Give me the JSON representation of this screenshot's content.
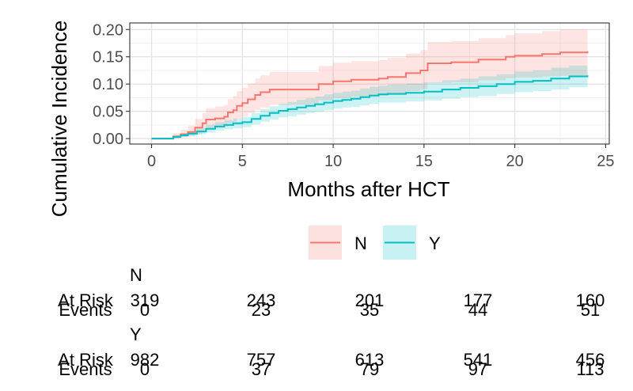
{
  "chart_data": {
    "type": "line",
    "ylabel": "Cumulative Incidence",
    "xlabel": "Months after HCT",
    "xlim": [
      -1.2,
      25.2
    ],
    "ylim": [
      -0.01,
      0.212
    ],
    "x_ticks": [
      0,
      5,
      10,
      15,
      20,
      25
    ],
    "y_ticks": [
      0.0,
      0.05,
      0.1,
      0.15,
      0.2
    ],
    "x_tick_labels": [
      "0",
      "5",
      "10",
      "15",
      "20",
      "25"
    ],
    "y_tick_labels": [
      "0.00",
      "0.05",
      "0.10",
      "0.15",
      "0.20"
    ],
    "grid": true,
    "legend_placement": "bottom",
    "series": [
      {
        "name": "N",
        "color": "#F8766D",
        "points": [
          [
            0,
            0
          ],
          [
            0.8,
            0
          ],
          [
            1.2,
            0.004
          ],
          [
            1.6,
            0.008
          ],
          [
            2.0,
            0.012
          ],
          [
            2.4,
            0.02
          ],
          [
            2.8,
            0.028
          ],
          [
            3.0,
            0.035
          ],
          [
            3.5,
            0.037
          ],
          [
            4.0,
            0.04
          ],
          [
            4.2,
            0.048
          ],
          [
            4.5,
            0.052
          ],
          [
            4.7,
            0.06
          ],
          [
            5.0,
            0.065
          ],
          [
            5.3,
            0.072
          ],
          [
            5.7,
            0.08
          ],
          [
            6.0,
            0.085
          ],
          [
            6.5,
            0.09
          ],
          [
            8.0,
            0.09
          ],
          [
            9.2,
            0.1
          ],
          [
            10.0,
            0.105
          ],
          [
            11.0,
            0.108
          ],
          [
            12.5,
            0.11
          ],
          [
            13.0,
            0.113
          ],
          [
            14.0,
            0.12
          ],
          [
            14.8,
            0.125
          ],
          [
            15.2,
            0.138
          ],
          [
            16.5,
            0.14
          ],
          [
            18.0,
            0.145
          ],
          [
            19.5,
            0.15
          ],
          [
            20.0,
            0.152
          ],
          [
            21.5,
            0.155
          ],
          [
            22.5,
            0.158
          ],
          [
            24,
            0.16
          ]
        ],
        "lower": [
          [
            0,
            0
          ],
          [
            0.8,
            0
          ],
          [
            1.2,
            0.0
          ],
          [
            1.6,
            0.002
          ],
          [
            2.0,
            0.004
          ],
          [
            2.4,
            0.008
          ],
          [
            2.8,
            0.013
          ],
          [
            3.0,
            0.018
          ],
          [
            3.5,
            0.02
          ],
          [
            4.0,
            0.022
          ],
          [
            4.2,
            0.028
          ],
          [
            4.5,
            0.031
          ],
          [
            4.7,
            0.037
          ],
          [
            5.0,
            0.041
          ],
          [
            5.3,
            0.047
          ],
          [
            5.7,
            0.053
          ],
          [
            6.0,
            0.057
          ],
          [
            6.5,
            0.062
          ],
          [
            8.0,
            0.062
          ],
          [
            9.2,
            0.07
          ],
          [
            10.0,
            0.074
          ],
          [
            11.0,
            0.077
          ],
          [
            12.5,
            0.079
          ],
          [
            13.0,
            0.081
          ],
          [
            14.0,
            0.087
          ],
          [
            14.8,
            0.091
          ],
          [
            15.2,
            0.102
          ],
          [
            16.5,
            0.103
          ],
          [
            18.0,
            0.107
          ],
          [
            19.5,
            0.111
          ],
          [
            20.0,
            0.112
          ],
          [
            21.5,
            0.114
          ],
          [
            22.5,
            0.115
          ],
          [
            24,
            0.116
          ]
        ],
        "upper": [
          [
            0,
            0
          ],
          [
            0.8,
            0.002
          ],
          [
            1.2,
            0.01
          ],
          [
            1.6,
            0.016
          ],
          [
            2.0,
            0.024
          ],
          [
            2.4,
            0.036
          ],
          [
            2.8,
            0.047
          ],
          [
            3.0,
            0.056
          ],
          [
            3.5,
            0.059
          ],
          [
            4.0,
            0.062
          ],
          [
            4.2,
            0.072
          ],
          [
            4.5,
            0.078
          ],
          [
            4.7,
            0.087
          ],
          [
            5.0,
            0.093
          ],
          [
            5.3,
            0.101
          ],
          [
            5.7,
            0.11
          ],
          [
            6.0,
            0.116
          ],
          [
            6.5,
            0.122
          ],
          [
            8.0,
            0.122
          ],
          [
            9.2,
            0.133
          ],
          [
            10.0,
            0.139
          ],
          [
            11.0,
            0.142
          ],
          [
            12.5,
            0.144
          ],
          [
            13.0,
            0.148
          ],
          [
            14.0,
            0.156
          ],
          [
            14.8,
            0.162
          ],
          [
            15.2,
            0.177
          ],
          [
            16.5,
            0.179
          ],
          [
            18.0,
            0.184
          ],
          [
            19.5,
            0.19
          ],
          [
            20.0,
            0.193
          ],
          [
            21.5,
            0.197
          ],
          [
            22.5,
            0.2
          ],
          [
            24,
            0.203
          ]
        ]
      },
      {
        "name": "Y",
        "color": "#00BFC4",
        "points": [
          [
            0,
            0
          ],
          [
            0.8,
            0
          ],
          [
            1.2,
            0.003
          ],
          [
            1.6,
            0.006
          ],
          [
            2.0,
            0.009
          ],
          [
            2.5,
            0.013
          ],
          [
            3.0,
            0.018
          ],
          [
            3.5,
            0.022
          ],
          [
            4.0,
            0.025
          ],
          [
            4.5,
            0.028
          ],
          [
            5.0,
            0.03
          ],
          [
            5.5,
            0.036
          ],
          [
            6.0,
            0.042
          ],
          [
            6.5,
            0.047
          ],
          [
            7.0,
            0.051
          ],
          [
            7.5,
            0.054
          ],
          [
            8.0,
            0.057
          ],
          [
            8.5,
            0.06
          ],
          [
            9.0,
            0.063
          ],
          [
            9.5,
            0.066
          ],
          [
            10.0,
            0.069
          ],
          [
            10.5,
            0.071
          ],
          [
            11.0,
            0.073
          ],
          [
            11.5,
            0.076
          ],
          [
            12.0,
            0.079
          ],
          [
            12.5,
            0.081
          ],
          [
            13.0,
            0.082
          ],
          [
            14.0,
            0.084
          ],
          [
            15.0,
            0.086
          ],
          [
            16.0,
            0.09
          ],
          [
            17.0,
            0.093
          ],
          [
            18.0,
            0.096
          ],
          [
            19.0,
            0.1
          ],
          [
            20.0,
            0.104
          ],
          [
            21.0,
            0.106
          ],
          [
            22.0,
            0.11
          ],
          [
            23.0,
            0.114
          ],
          [
            24,
            0.116
          ]
        ],
        "lower": [
          [
            0,
            0
          ],
          [
            0.8,
            0
          ],
          [
            1.2,
            0.001
          ],
          [
            1.6,
            0.003
          ],
          [
            2.0,
            0.005
          ],
          [
            2.5,
            0.008
          ],
          [
            3.0,
            0.011
          ],
          [
            3.5,
            0.015
          ],
          [
            4.0,
            0.017
          ],
          [
            4.5,
            0.019
          ],
          [
            5.0,
            0.021
          ],
          [
            5.5,
            0.026
          ],
          [
            6.0,
            0.031
          ],
          [
            6.5,
            0.035
          ],
          [
            7.0,
            0.039
          ],
          [
            7.5,
            0.041
          ],
          [
            8.0,
            0.044
          ],
          [
            8.5,
            0.047
          ],
          [
            9.0,
            0.049
          ],
          [
            9.5,
            0.052
          ],
          [
            10.0,
            0.055
          ],
          [
            10.5,
            0.057
          ],
          [
            11.0,
            0.058
          ],
          [
            11.5,
            0.061
          ],
          [
            12.0,
            0.064
          ],
          [
            12.5,
            0.066
          ],
          [
            13.0,
            0.066
          ],
          [
            14.0,
            0.068
          ],
          [
            15.0,
            0.07
          ],
          [
            16.0,
            0.073
          ],
          [
            17.0,
            0.076
          ],
          [
            18.0,
            0.078
          ],
          [
            19.0,
            0.082
          ],
          [
            20.0,
            0.085
          ],
          [
            21.0,
            0.087
          ],
          [
            22.0,
            0.09
          ],
          [
            23.0,
            0.094
          ],
          [
            24,
            0.095
          ]
        ],
        "upper": [
          [
            0,
            0
          ],
          [
            0.8,
            0.001
          ],
          [
            1.2,
            0.006
          ],
          [
            1.6,
            0.01
          ],
          [
            2.0,
            0.014
          ],
          [
            2.5,
            0.019
          ],
          [
            3.0,
            0.025
          ],
          [
            3.5,
            0.03
          ],
          [
            4.0,
            0.034
          ],
          [
            4.5,
            0.037
          ],
          [
            5.0,
            0.04
          ],
          [
            5.5,
            0.047
          ],
          [
            6.0,
            0.054
          ],
          [
            6.5,
            0.059
          ],
          [
            7.0,
            0.064
          ],
          [
            7.5,
            0.067
          ],
          [
            8.0,
            0.071
          ],
          [
            8.5,
            0.074
          ],
          [
            9.0,
            0.077
          ],
          [
            9.5,
            0.081
          ],
          [
            10.0,
            0.084
          ],
          [
            10.5,
            0.086
          ],
          [
            11.0,
            0.088
          ],
          [
            11.5,
            0.092
          ],
          [
            12.0,
            0.095
          ],
          [
            12.5,
            0.097
          ],
          [
            13.0,
            0.099
          ],
          [
            14.0,
            0.101
          ],
          [
            15.0,
            0.103
          ],
          [
            16.0,
            0.107
          ],
          [
            17.0,
            0.11
          ],
          [
            18.0,
            0.114
          ],
          [
            19.0,
            0.118
          ],
          [
            20.0,
            0.123
          ],
          [
            21.0,
            0.125
          ],
          [
            22.0,
            0.13
          ],
          [
            23.0,
            0.134
          ],
          [
            24,
            0.137
          ]
        ]
      }
    ],
    "risk_table": {
      "time_points": [
        0,
        6,
        12,
        18,
        24
      ],
      "row_labels": {
        "at_risk": "At Risk",
        "events": "Events"
      },
      "groups": [
        {
          "name": "N",
          "at_risk": [
            "319",
            "243",
            "201",
            "177",
            "160"
          ],
          "events": [
            "0",
            "23",
            "35",
            "44",
            "51"
          ]
        },
        {
          "name": "Y",
          "at_risk": [
            "982",
            "757",
            "613",
            "541",
            "456"
          ],
          "events": [
            "0",
            "37",
            "79",
            "97",
            "113"
          ]
        }
      ]
    }
  }
}
